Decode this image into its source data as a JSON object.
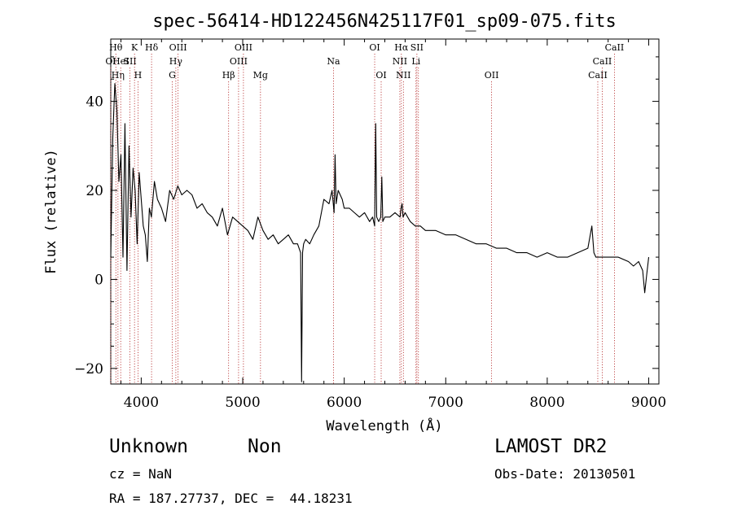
{
  "chart_data": {
    "type": "line",
    "title": "spec-56414-HD122456N425117F01_sp09-075.fits",
    "xlabel": "Wavelength (Å)",
    "ylabel": "Flux (relative)",
    "xlim": [
      3700,
      9100
    ],
    "ylim": [
      -23.5,
      54
    ],
    "x_ticks": [
      4000,
      5000,
      6000,
      7000,
      8000,
      9000
    ],
    "y_ticks": [
      -20,
      0,
      20,
      40
    ],
    "grid": false,
    "series": [
      {
        "color": "#000000",
        "x": [
          3700,
          3720,
          3740,
          3760,
          3780,
          3800,
          3820,
          3840,
          3860,
          3880,
          3900,
          3920,
          3940,
          3960,
          3980,
          4000,
          4020,
          4040,
          4060,
          4080,
          4100,
          4130,
          4160,
          4200,
          4240,
          4280,
          4320,
          4360,
          4400,
          4450,
          4500,
          4550,
          4600,
          4650,
          4700,
          4750,
          4800,
          4850,
          4900,
          4950,
          5000,
          5050,
          5100,
          5150,
          5200,
          5250,
          5300,
          5350,
          5400,
          5450,
          5500,
          5540,
          5570,
          5580,
          5590,
          5600,
          5620,
          5660,
          5700,
          5750,
          5800,
          5850,
          5880,
          5900,
          5910,
          5920,
          5940,
          5980,
          6000,
          6050,
          6100,
          6150,
          6200,
          6250,
          6280,
          6300,
          6310,
          6320,
          6340,
          6360,
          6370,
          6380,
          6400,
          6450,
          6500,
          6550,
          6560,
          6570,
          6580,
          6600,
          6650,
          6700,
          6750,
          6800,
          6900,
          7000,
          7100,
          7200,
          7300,
          7400,
          7500,
          7600,
          7700,
          7800,
          7900,
          8000,
          8100,
          8200,
          8300,
          8400,
          8440,
          8460,
          8480,
          8500,
          8540,
          8600,
          8660,
          8700,
          8800,
          8850,
          8900,
          8940,
          8960,
          8980,
          9000
        ],
        "y": [
          5,
          32,
          44,
          38,
          22,
          28,
          5,
          35,
          2,
          30,
          14,
          25,
          20,
          8,
          24,
          18,
          12,
          10,
          4,
          16,
          14,
          22,
          18,
          16,
          13,
          20,
          18,
          21,
          19,
          20,
          19,
          16,
          17,
          15,
          14,
          12,
          16,
          10,
          14,
          13,
          12,
          11,
          9,
          14,
          11,
          9,
          10,
          8,
          9,
          10,
          8,
          8,
          6,
          -23,
          6,
          8,
          9,
          8,
          10,
          12,
          18,
          17,
          20,
          15,
          28,
          17,
          20,
          18,
          16,
          16,
          15,
          14,
          15,
          13,
          14,
          12,
          35,
          14,
          13,
          14,
          23,
          13,
          14,
          14,
          15,
          14,
          16,
          17,
          14,
          15,
          13,
          12,
          12,
          11,
          11,
          10,
          10,
          9,
          8,
          8,
          7,
          7,
          6,
          6,
          5,
          6,
          5,
          5,
          6,
          7,
          12,
          6,
          5,
          5,
          5,
          5,
          5,
          5,
          4,
          3,
          4,
          2,
          -3,
          1,
          5
        ]
      }
    ],
    "lines": [
      {
        "w": 3700,
        "label": "OI",
        "row": 2
      },
      {
        "w": 3750,
        "label": "Hθ",
        "row": 1
      },
      {
        "w": 3771,
        "label": "Hη",
        "row": 3
      },
      {
        "w": 3798,
        "label": "HeI",
        "row": 2
      },
      {
        "w": 3889,
        "label": "SII",
        "row": 2
      },
      {
        "w": 3934,
        "label": "K",
        "row": 1
      },
      {
        "w": 3968,
        "label": "H",
        "row": 3
      },
      {
        "w": 4102,
        "label": "Hδ",
        "row": 1
      },
      {
        "w": 4306,
        "label": "G",
        "row": 3
      },
      {
        "w": 4341,
        "label": "Hγ",
        "row": 2
      },
      {
        "w": 4363,
        "label": "OIII",
        "row": 1
      },
      {
        "w": 4861,
        "label": "Hβ",
        "row": 3
      },
      {
        "w": 4959,
        "label": "OIII",
        "row": 2
      },
      {
        "w": 5007,
        "label": "OIII",
        "row": 1
      },
      {
        "w": 5175,
        "label": "Mg",
        "row": 3
      },
      {
        "w": 5894,
        "label": "Na",
        "row": 2
      },
      {
        "w": 6300,
        "label": "OI",
        "row": 1
      },
      {
        "w": 6364,
        "label": "OI",
        "row": 3
      },
      {
        "w": 6548,
        "label": "NII",
        "row": 2
      },
      {
        "w": 6563,
        "label": "Hα",
        "row": 1
      },
      {
        "w": 6583,
        "label": "NII",
        "row": 3
      },
      {
        "w": 6707,
        "label": "Li",
        "row": 2
      },
      {
        "w": 6716,
        "label": "SII",
        "row": 1
      },
      {
        "w": 6731,
        "label": "",
        "row": 0
      },
      {
        "w": 7452,
        "label": "OII",
        "row": 3
      },
      {
        "w": 8498,
        "label": "CaII",
        "row": 3
      },
      {
        "w": 8542,
        "label": "CaII",
        "row": 2
      },
      {
        "w": 8662,
        "label": "CaII",
        "row": 1
      }
    ]
  },
  "info": {
    "class": "Unknown",
    "subclass": "Non",
    "cz": "cz = NaN",
    "radec": "RA = 187.27737, DEC =  44.18231",
    "source": "LAMOST DR2",
    "obs_date": "Obs-Date: 20130501"
  }
}
